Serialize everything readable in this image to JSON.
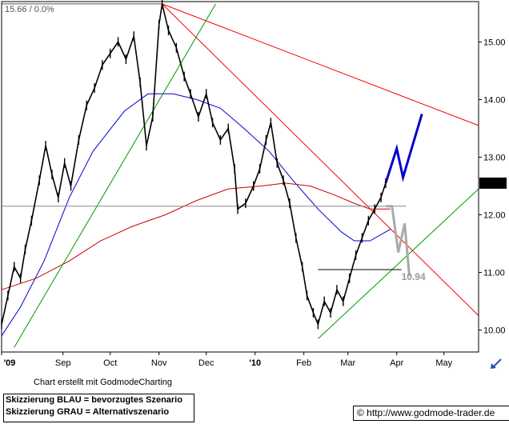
{
  "header": {
    "quote": "15.66 / 0.0%"
  },
  "chart_data": {
    "type": "line",
    "title": "",
    "xlabel": "",
    "ylabel": "",
    "x_range": [
      "2009-07-24",
      "2010-05-23"
    ],
    "ylim": [
      9.62,
      15.7
    ],
    "x_ticks": [
      {
        "label": "'09",
        "date": "2009-07-24"
      },
      {
        "label": "Sep",
        "date": "2009-09-01"
      },
      {
        "label": "Oct",
        "date": "2009-10-01"
      },
      {
        "label": "Nov",
        "date": "2009-11-01"
      },
      {
        "label": "Dec",
        "date": "2009-12-01"
      },
      {
        "label": "'10",
        "date": "2010-01-01"
      },
      {
        "label": "Feb",
        "date": "2010-02-01"
      },
      {
        "label": "Mar",
        "date": "2010-03-01"
      },
      {
        "label": "Apr",
        "date": "2010-04-01"
      },
      {
        "label": "May",
        "date": "2010-05-01"
      }
    ],
    "y_ticks": [
      10.0,
      11.0,
      12.0,
      13.0,
      14.0,
      15.0
    ],
    "last_price_label": "12.55",
    "last_price_color": "#000000",
    "annotations": [
      {
        "text": "10.94",
        "date": "2010-04-04",
        "value": 10.94,
        "color": "#999999"
      }
    ],
    "price_series": {
      "name": "",
      "color": "#000000",
      "points": [
        [
          "2009-07-24",
          10.1
        ],
        [
          "2009-07-28",
          10.6
        ],
        [
          "2009-08-01",
          11.1
        ],
        [
          "2009-08-05",
          10.9
        ],
        [
          "2009-08-08",
          11.4
        ],
        [
          "2009-08-12",
          11.9
        ],
        [
          "2009-08-17",
          12.6
        ],
        [
          "2009-08-21",
          13.2
        ],
        [
          "2009-08-25",
          12.7
        ],
        [
          "2009-08-29",
          12.3
        ],
        [
          "2009-09-02",
          12.9
        ],
        [
          "2009-09-06",
          12.5
        ],
        [
          "2009-09-11",
          13.3
        ],
        [
          "2009-09-16",
          13.9
        ],
        [
          "2009-09-21",
          14.2
        ],
        [
          "2009-09-26",
          14.6
        ],
        [
          "2009-10-01",
          14.8
        ],
        [
          "2009-10-06",
          15.0
        ],
        [
          "2009-10-11",
          14.7
        ],
        [
          "2009-10-16",
          15.1
        ],
        [
          "2009-10-20",
          14.3
        ],
        [
          "2009-10-24",
          13.2
        ],
        [
          "2009-10-28",
          13.7
        ],
        [
          "2009-11-01",
          15.3
        ],
        [
          "2009-11-03",
          15.66
        ],
        [
          "2009-11-07",
          15.2
        ],
        [
          "2009-11-12",
          14.9
        ],
        [
          "2009-11-17",
          14.4
        ],
        [
          "2009-11-21",
          14.1
        ],
        [
          "2009-11-26",
          13.7
        ],
        [
          "2009-12-01",
          14.1
        ],
        [
          "2009-12-05",
          13.6
        ],
        [
          "2009-12-10",
          13.3
        ],
        [
          "2009-12-15",
          13.5
        ],
        [
          "2009-12-19",
          12.8
        ],
        [
          "2009-12-21",
          12.1
        ],
        [
          "2009-12-26",
          12.2
        ],
        [
          "2009-12-31",
          12.5
        ],
        [
          "2010-01-04",
          12.8
        ],
        [
          "2010-01-08",
          13.3
        ],
        [
          "2010-01-11",
          13.6
        ],
        [
          "2010-01-15",
          12.9
        ],
        [
          "2010-01-19",
          12.6
        ],
        [
          "2010-01-23",
          12.2
        ],
        [
          "2010-01-27",
          11.6
        ],
        [
          "2010-01-31",
          11.1
        ],
        [
          "2010-02-03",
          10.6
        ],
        [
          "2010-02-07",
          10.3
        ],
        [
          "2010-02-10",
          10.1
        ],
        [
          "2010-02-14",
          10.5
        ],
        [
          "2010-02-18",
          10.3
        ],
        [
          "2010-02-22",
          10.7
        ],
        [
          "2010-02-26",
          10.5
        ],
        [
          "2010-03-02",
          10.9
        ],
        [
          "2010-03-06",
          11.3
        ],
        [
          "2010-03-10",
          11.6
        ],
        [
          "2010-03-14",
          11.9
        ],
        [
          "2010-03-18",
          12.1
        ],
        [
          "2010-03-22",
          12.3
        ],
        [
          "2010-03-25",
          12.55
        ]
      ]
    },
    "series": [
      {
        "name": "",
        "color": "#0000cc",
        "role": "moving-average-short",
        "points": [
          [
            "2009-07-24",
            9.9
          ],
          [
            "2009-08-05",
            10.4
          ],
          [
            "2009-08-20",
            11.2
          ],
          [
            "2009-09-05",
            12.3
          ],
          [
            "2009-09-20",
            13.1
          ],
          [
            "2009-10-10",
            13.8
          ],
          [
            "2009-10-25",
            14.1
          ],
          [
            "2009-11-10",
            14.1
          ],
          [
            "2009-11-25",
            14.0
          ],
          [
            "2009-12-10",
            13.85
          ],
          [
            "2009-12-25",
            13.5
          ],
          [
            "2010-01-10",
            13.1
          ],
          [
            "2010-01-25",
            12.6
          ],
          [
            "2010-02-10",
            12.1
          ],
          [
            "2010-02-25",
            11.7
          ],
          [
            "2010-03-05",
            11.55
          ],
          [
            "2010-03-15",
            11.55
          ],
          [
            "2010-03-28",
            11.75
          ]
        ]
      },
      {
        "name": "",
        "color": "#cc0000",
        "role": "moving-average-long",
        "points": [
          [
            "2009-07-24",
            10.7
          ],
          [
            "2009-08-15",
            10.9
          ],
          [
            "2009-09-05",
            11.2
          ],
          [
            "2009-09-25",
            11.55
          ],
          [
            "2009-10-15",
            11.8
          ],
          [
            "2009-11-05",
            12.0
          ],
          [
            "2009-11-25",
            12.25
          ],
          [
            "2009-12-15",
            12.45
          ],
          [
            "2010-01-05",
            12.5
          ],
          [
            "2010-01-20",
            12.55
          ],
          [
            "2010-02-05",
            12.5
          ],
          [
            "2010-02-20",
            12.35
          ],
          [
            "2010-03-05",
            12.2
          ],
          [
            "2010-03-15",
            12.1
          ],
          [
            "2010-03-28",
            12.1
          ]
        ]
      },
      {
        "name": "",
        "color": "#ff0000",
        "role": "trendline",
        "points": [
          [
            "2009-11-03",
            15.66
          ],
          [
            "2010-05-23",
            13.55
          ]
        ]
      },
      {
        "name": "",
        "color": "#ff0000",
        "role": "trendline",
        "points": [
          [
            "2009-11-03",
            15.66
          ],
          [
            "2010-05-23",
            10.25
          ]
        ]
      },
      {
        "name": "",
        "color": "#009900",
        "role": "trendline",
        "points": [
          [
            "2009-08-01",
            9.7
          ],
          [
            "2009-12-07",
            15.66
          ]
        ]
      },
      {
        "name": "",
        "color": "#009900",
        "role": "trendline",
        "points": [
          [
            "2010-02-10",
            9.85
          ],
          [
            "2010-05-23",
            12.45
          ]
        ]
      },
      {
        "name": "",
        "color": "#888888",
        "role": "horizontal-line",
        "points": [
          [
            "2009-07-24",
            12.15
          ],
          [
            "2010-04-07",
            12.15
          ]
        ]
      },
      {
        "name": "",
        "color": "#555555",
        "role": "horizontal-line",
        "points": [
          [
            "2009-07-24",
            15.66
          ],
          [
            "2009-11-03",
            15.66
          ]
        ]
      },
      {
        "name": "",
        "color": "#000000",
        "role": "horizontal-line",
        "points": [
          [
            "2010-02-10",
            11.05
          ],
          [
            "2010-04-04",
            11.05
          ]
        ]
      },
      {
        "name": "BLAU",
        "color": "#0000cc",
        "role": "scenario-preferred",
        "points": [
          [
            "2010-03-25",
            12.55
          ],
          [
            "2010-04-01",
            13.15
          ],
          [
            "2010-04-05",
            12.65
          ],
          [
            "2010-04-17",
            13.75
          ]
        ]
      },
      {
        "name": "GRAU",
        "color": "#aaaaaa",
        "role": "scenario-alternative",
        "points": [
          [
            "2010-03-25",
            12.15
          ],
          [
            "2010-03-29",
            12.15
          ],
          [
            "2010-04-02",
            11.35
          ],
          [
            "2010-04-06",
            11.85
          ],
          [
            "2010-04-09",
            10.94
          ]
        ]
      }
    ]
  },
  "footer": {
    "credit": "Chart erstellt mit GodmodeCharting",
    "legend_line1": "Skizzierung BLAU = bevorzugtes Szenario",
    "legend_line2": "Skizzierung GRAU = Alternativszenario",
    "url": "© http://www.godmode-trader.de"
  },
  "nav": {
    "icon": "arrow-down-left-icon"
  }
}
